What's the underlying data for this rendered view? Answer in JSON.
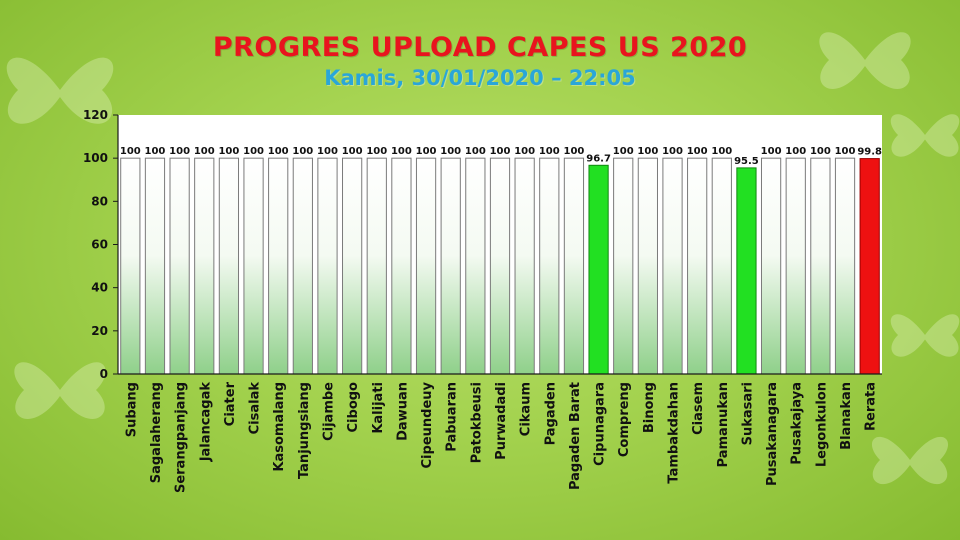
{
  "title": "PROGRES UPLOAD CAPES US 2020",
  "subtitle": "Kamis, 30/01/2020 – 22:05",
  "chart_data": {
    "type": "bar",
    "categories": [
      "Subang",
      "Sagalaherang",
      "Serangpanjang",
      "Jalancagak",
      "Ciater",
      "Cisalak",
      "Kasomalang",
      "Tanjungsiang",
      "Cijambe",
      "Cibogo",
      "Kalijati",
      "Dawuan",
      "Cipeundeuy",
      "Pabuaran",
      "Patokbeusi",
      "Purwadadi",
      "Cikaum",
      "Pagaden",
      "Pagaden Barat",
      "Cipunagara",
      "Compreng",
      "Binong",
      "Tambakdahan",
      "Ciasem",
      "Pamanukan",
      "Sukasari",
      "Pusakanagara",
      "Pusakajaya",
      "Legonkulon",
      "Blanakan",
      "Rerata"
    ],
    "values": [
      100,
      100,
      100,
      100,
      100,
      100,
      100,
      100,
      100,
      100,
      100,
      100,
      100,
      100,
      100,
      100,
      100,
      100,
      100,
      96.7,
      100,
      100,
      100,
      100,
      100,
      95.5,
      100,
      100,
      100,
      100,
      99.8
    ],
    "data_labels": [
      "100",
      "100",
      "100",
      "100",
      "100",
      "100",
      "100",
      "100",
      "100",
      "100",
      "100",
      "100",
      "100",
      "100",
      "100",
      "100",
      "100",
      "100",
      "100",
      "96.7",
      "100",
      "100",
      "100",
      "100",
      "100",
      "95.5",
      "100",
      "100",
      "100",
      "100",
      "99.8"
    ],
    "y_ticks": [
      "0",
      "20",
      "40",
      "60",
      "80",
      "100",
      "120"
    ],
    "ylim": [
      0,
      120
    ],
    "grid": false,
    "bar_fill": "white-to-green gradient",
    "highlight_colors": {
      "below_100": "#22e022",
      "average": "#ee1111"
    },
    "axis_color": "#1a1a1a",
    "plot_background": "#ffffff"
  }
}
